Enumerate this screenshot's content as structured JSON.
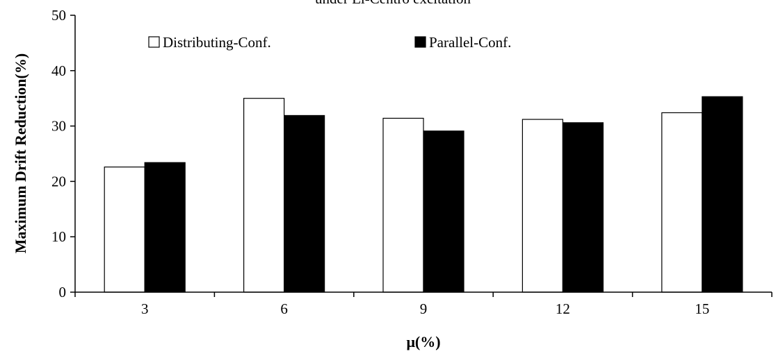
{
  "chart_data": {
    "type": "bar",
    "title": "under El-Centro excitation",
    "xlabel": "μ(%)",
    "ylabel": "Maximum Drift Reduction(%)",
    "categories": [
      "3",
      "6",
      "9",
      "12",
      "15"
    ],
    "series": [
      {
        "name": "Distributing-Conf.",
        "values": [
          22.6,
          35.0,
          31.4,
          31.2,
          32.4
        ],
        "color": "#ffffff"
      },
      {
        "name": "Parallel-Conf.",
        "values": [
          23.4,
          31.9,
          29.1,
          30.6,
          35.3
        ],
        "color": "#000000"
      }
    ],
    "ylim": [
      0,
      50
    ],
    "yticks": [
      "0",
      "10",
      "20",
      "30",
      "40",
      "50"
    ],
    "grid": false,
    "legend_position": "top"
  }
}
